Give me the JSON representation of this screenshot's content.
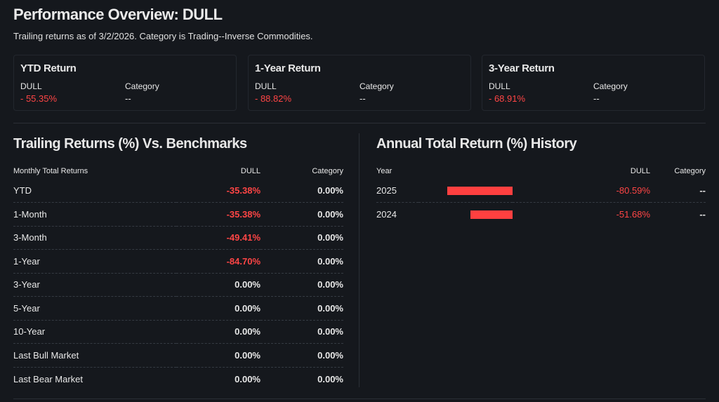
{
  "header": {
    "title": "Performance Overview: DULL",
    "subtitle": "Trailing returns as of 3/2/2026. Category is Trading--Inverse Commodities."
  },
  "cards": [
    {
      "title": "YTD Return",
      "ticker": "DULL",
      "ticker_value": "- 55.35%",
      "category_label": "Category",
      "category_value": "--"
    },
    {
      "title": "1-Year Return",
      "ticker": "DULL",
      "ticker_value": "- 88.82%",
      "category_label": "Category",
      "category_value": "--"
    },
    {
      "title": "3-Year Return",
      "ticker": "DULL",
      "ticker_value": "- 68.91%",
      "category_label": "Category",
      "category_value": "--"
    }
  ],
  "trailing": {
    "title": "Trailing Returns (%) Vs. Benchmarks",
    "headers": [
      "Monthly Total Returns",
      "DULL",
      "Category"
    ],
    "rows": [
      {
        "label": "YTD",
        "dull": "-35.38%",
        "category": "0.00%",
        "negative": true
      },
      {
        "label": "1-Month",
        "dull": "-35.38%",
        "category": "0.00%",
        "negative": true
      },
      {
        "label": "3-Month",
        "dull": "-49.41%",
        "category": "0.00%",
        "negative": true
      },
      {
        "label": "1-Year",
        "dull": "-84.70%",
        "category": "0.00%",
        "negative": true
      },
      {
        "label": "3-Year",
        "dull": "0.00%",
        "category": "0.00%",
        "negative": false
      },
      {
        "label": "5-Year",
        "dull": "0.00%",
        "category": "0.00%",
        "negative": false
      },
      {
        "label": "10-Year",
        "dull": "0.00%",
        "category": "0.00%",
        "negative": false
      },
      {
        "label": "Last Bull Market",
        "dull": "0.00%",
        "category": "0.00%",
        "negative": false
      },
      {
        "label": "Last Bear Market",
        "dull": "0.00%",
        "category": "0.00%",
        "negative": false
      }
    ]
  },
  "annual": {
    "title": "Annual Total Return (%) History",
    "headers": [
      "Year",
      "DULL",
      "Category"
    ],
    "rows": [
      {
        "year": "2025",
        "dull": "-80.59%",
        "value": -80.59,
        "category": "--"
      },
      {
        "year": "2024",
        "dull": "-51.68%",
        "value": -51.68,
        "category": "--"
      }
    ]
  },
  "colors": {
    "negative": "#ff4545",
    "background": "#15181d"
  }
}
